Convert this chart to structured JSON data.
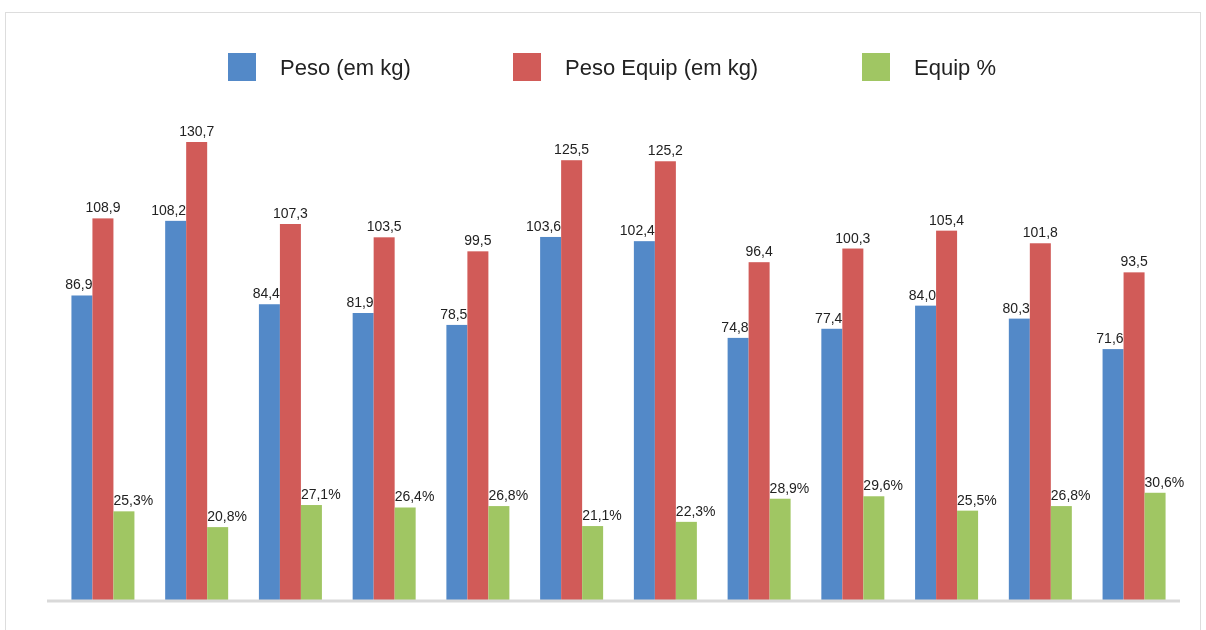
{
  "chart_data": {
    "type": "bar",
    "categories": [
      null,
      null,
      null,
      null,
      null,
      null,
      null,
      null,
      null,
      null,
      null,
      null
    ],
    "series": [
      {
        "name": "Peso (em kg)",
        "color": "#5389c8",
        "values": [
          86.9,
          108.2,
          84.4,
          81.9,
          78.5,
          103.6,
          102.4,
          74.8,
          77.4,
          84.0,
          80.3,
          71.6
        ],
        "value_labels": [
          "86,9",
          "108,2",
          "84,4",
          "81,9",
          "78,5",
          "103,6",
          "102,4",
          "74,8",
          "77,4",
          "84,0",
          "80,3",
          "71,6"
        ]
      },
      {
        "name": "Peso Equip (em kg)",
        "color": "#d15b58",
        "values": [
          108.9,
          130.7,
          107.3,
          103.5,
          99.5,
          125.5,
          125.2,
          96.4,
          100.3,
          105.4,
          101.8,
          93.5
        ],
        "value_labels": [
          "108,9",
          "130,7",
          "107,3",
          "103,5",
          "99,5",
          "125,5",
          "125,2",
          "96,4",
          "100,3",
          "105,4",
          "101,8",
          "93,5"
        ]
      },
      {
        "name": "Equip %",
        "color": "#a0c663",
        "values": [
          25.3,
          20.8,
          27.1,
          26.4,
          26.8,
          21.1,
          22.3,
          28.9,
          29.6,
          25.5,
          26.8,
          30.6
        ],
        "value_labels": [
          "25,3%",
          "20,8%",
          "27,1%",
          "26,4%",
          "26,8%",
          "21,1%",
          "22,3%",
          "28,9%",
          "29,6%",
          "25,5%",
          "26,8%",
          "30,6%"
        ]
      }
    ],
    "legend": "top"
  }
}
